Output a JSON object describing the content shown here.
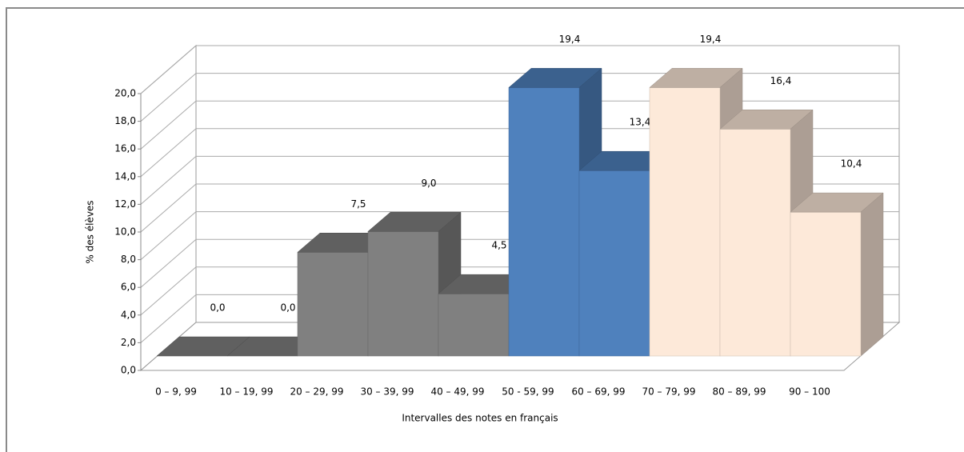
{
  "chart_data": {
    "type": "bar3d",
    "ylabel": "% des élèves",
    "xlabel": "Intervalles des notes en français",
    "categories": [
      "0 – 9, 99",
      "10 – 19, 99",
      "20 – 29, 99",
      "30 – 39, 99",
      "40 – 49, 99",
      "50 - 59, 99",
      "60 – 69, 99",
      "70 – 79, 99",
      "80 – 89, 99",
      "90 – 100"
    ],
    "values": [
      0.0,
      0.0,
      7.5,
      9.0,
      4.5,
      19.4,
      13.4,
      19.4,
      16.4,
      10.4
    ],
    "value_labels": [
      "0,0",
      "0,0",
      "7,5",
      "9,0",
      "4,5",
      "19,4",
      "13,4",
      "19,4",
      "16,4",
      "10,4"
    ],
    "colors": [
      "#808080",
      "#808080",
      "#808080",
      "#808080",
      "#808080",
      "#4f81bd",
      "#4f81bd",
      "#fde9d9",
      "#fde9d9",
      "#fde9d9"
    ],
    "ylim": [
      0,
      20
    ],
    "yticks": [
      {
        "value": 0,
        "label": "0,0"
      },
      {
        "value": 2,
        "label": "2,0"
      },
      {
        "value": 4,
        "label": "4,0"
      },
      {
        "value": 6,
        "label": "6,0"
      },
      {
        "value": 8,
        "label": "8,0"
      },
      {
        "value": 10,
        "label": "10,0"
      },
      {
        "value": 12,
        "label": "12,0"
      },
      {
        "value": 14,
        "label": "14,0"
      },
      {
        "value": 16,
        "label": "16,0"
      },
      {
        "value": 18,
        "label": "18,0"
      },
      {
        "value": 20,
        "label": "20,0"
      }
    ],
    "grid": true
  }
}
